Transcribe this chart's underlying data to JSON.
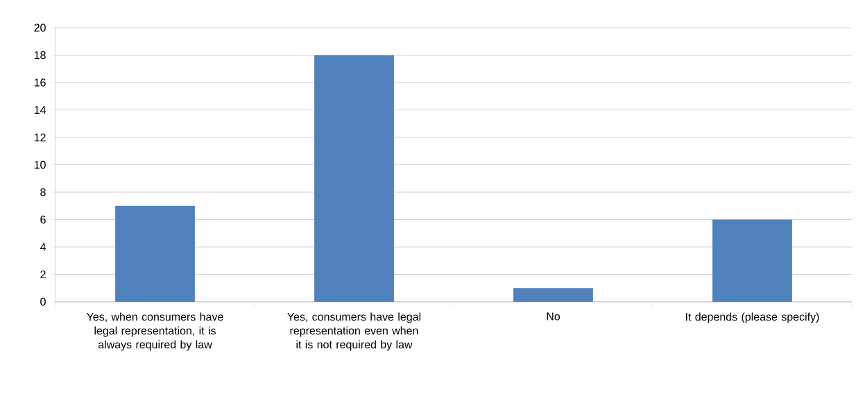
{
  "chart_data": {
    "type": "bar",
    "categories": [
      "Yes, when consumers have legal representation, it is always required by law",
      "Yes, consumers have legal representation even when it is not required by law",
      "No",
      "It depends (please specify)"
    ],
    "values": [
      7,
      18,
      1,
      6
    ],
    "color": "#4f81bd",
    "ylim": [
      0,
      20
    ],
    "yticks": [
      0,
      2,
      4,
      6,
      8,
      10,
      12,
      14,
      16,
      18,
      20
    ],
    "grid": "y"
  }
}
